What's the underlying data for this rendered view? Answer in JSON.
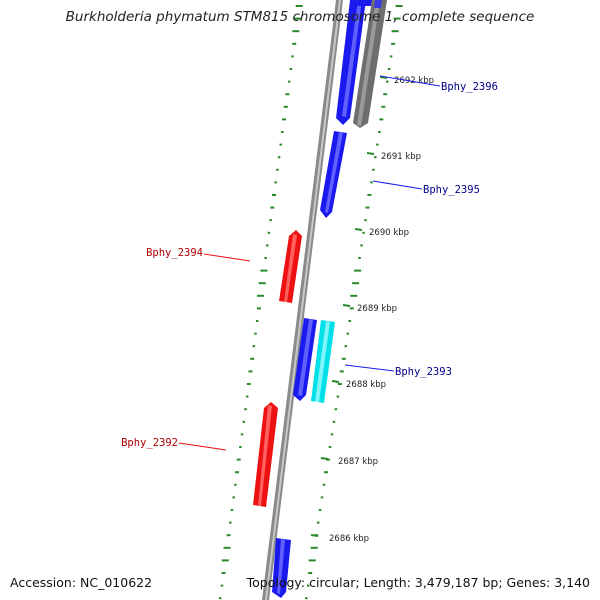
{
  "title": "Burkholderia phymatum STM815 chromosome 1, complete sequence",
  "footer": {
    "accession": "Accession: NC_010622",
    "summary": "Topology: circular; Length: 3,479,187 bp; Genes: 3,140"
  },
  "colors": {
    "forward_gene": "#1a1aee",
    "forward_gene_alt": "#00e0e8",
    "reverse_gene": "#ee1111",
    "pseudo_gene": "#707070",
    "backbone": "#8a8a8a",
    "gc_dots": "#2a8a2a",
    "forward_label": "#00008b",
    "reverse_label": "#b00000"
  },
  "axis": {
    "ticks": [
      {
        "label": "2692 kbp"
      },
      {
        "label": "2691 kbp"
      },
      {
        "label": "2690 kbp"
      },
      {
        "label": "2689 kbp"
      },
      {
        "label": "2688 kbp"
      },
      {
        "label": "2687 kbp"
      },
      {
        "label": "2686 kbp"
      }
    ]
  },
  "gene_labels": [
    {
      "name": "Bphy_2396",
      "strand": "forward"
    },
    {
      "name": "Bphy_2395",
      "strand": "forward"
    },
    {
      "name": "Bphy_2394",
      "strand": "reverse"
    },
    {
      "name": "Bphy_2393",
      "strand": "forward"
    },
    {
      "name": "Bphy_2392",
      "strand": "reverse"
    }
  ]
}
